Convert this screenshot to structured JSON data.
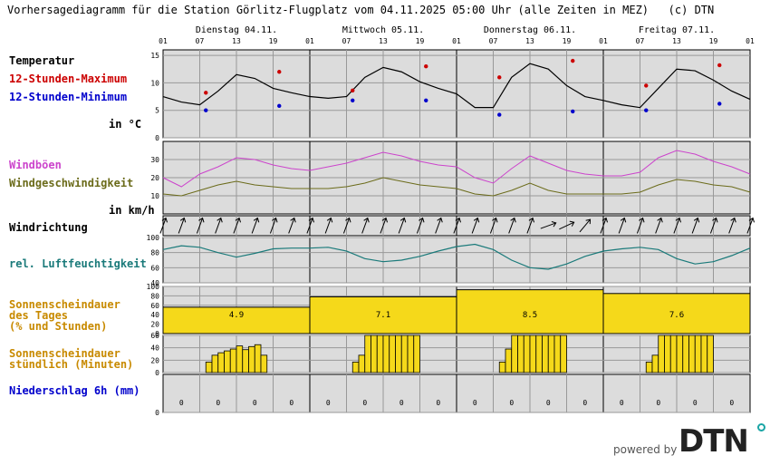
{
  "header": {
    "title": "Vorhersagediagramm für die Station Görlitz-Flugplatz vom 04.11.2025 05:00 Uhr (alle Zeiten in MEZ)   (c) DTN"
  },
  "days": [
    "Dienstag 04.11.",
    "Mittwoch 05.11.",
    "Donnerstag 06.11.",
    "Freitag 07.11."
  ],
  "hour_ticks": [
    "01",
    "07",
    "13",
    "19",
    "01",
    "07",
    "13",
    "19",
    "01",
    "07",
    "13",
    "19",
    "01",
    "07",
    "13",
    "19",
    "01"
  ],
  "labels": {
    "temperatur": "Temperatur",
    "tmax": "12-Stunden-Maximum",
    "tmin": "12-Stunden-Minimum",
    "temp_unit": "in °C",
    "windboeen": "Windböen",
    "windgeschw": "Windgeschwindigkeit",
    "wind_unit": "in km/h",
    "windrichtung": "Windrichtung",
    "feuchte": "rel. Luftfeuchtigkeit",
    "sonne_tag": "Sonnenscheindauer\ndes Tages\n(% und Stunden)",
    "sonne_std": "Sonnenscheindauer\nstündlich (Minuten)",
    "niederschlag": "Niederschlag 6h (mm)"
  },
  "colors": {
    "panel_bg": "#dcdcdc",
    "grid": "#999999",
    "temperature": "#000000",
    "max": "#cc0000",
    "min": "#0000cc",
    "gust": "#cc44cc",
    "wind": "#6b6b1a",
    "humidity": "#1a7a7a",
    "sun_fill": "#f5d91a",
    "sun_label": "#c88a00",
    "wind_label": "#6b6b1a",
    "gust_label": "#cc44cc",
    "precip_label": "#0000cc"
  },
  "brand": {
    "powered_by": "powered by",
    "logo": "DTN"
  },
  "chart_data": {
    "temperature": {
      "type": "line",
      "ylim": [
        0,
        16
      ],
      "yticks": [
        0,
        5,
        10,
        15
      ],
      "x_hours": [
        0,
        3,
        6,
        9,
        12,
        15,
        18,
        21,
        24,
        27,
        30,
        33,
        36,
        39,
        42,
        45,
        48,
        51,
        54,
        57,
        60,
        63,
        66,
        69,
        72,
        75,
        78,
        81,
        84,
        87,
        90,
        93,
        96
      ],
      "values": [
        7.5,
        6.5,
        6.0,
        8.5,
        11.5,
        10.8,
        9.0,
        8.2,
        7.5,
        7.2,
        7.5,
        11.0,
        12.8,
        12.0,
        10.2,
        9.0,
        8.0,
        5.5,
        5.5,
        11.0,
        13.5,
        12.5,
        9.5,
        7.5,
        6.8,
        6.0,
        5.5,
        9.0,
        12.5,
        12.2,
        10.5,
        8.5,
        7.0
      ],
      "max_points": [
        {
          "hour": 7,
          "value": 8.2
        },
        {
          "hour": 19,
          "value": 12.0
        },
        {
          "hour": 31,
          "value": 8.6
        },
        {
          "hour": 43,
          "value": 13.0
        },
        {
          "hour": 55,
          "value": 11.0
        },
        {
          "hour": 67,
          "value": 14.0
        },
        {
          "hour": 79,
          "value": 9.5
        },
        {
          "hour": 91,
          "value": 13.2
        }
      ],
      "min_points": [
        {
          "hour": 7,
          "value": 5.0
        },
        {
          "hour": 19,
          "value": 5.8
        },
        {
          "hour": 31,
          "value": 6.8
        },
        {
          "hour": 43,
          "value": 6.8
        },
        {
          "hour": 55,
          "value": 4.2
        },
        {
          "hour": 67,
          "value": 4.8
        },
        {
          "hour": 79,
          "value": 5.0
        },
        {
          "hour": 91,
          "value": 6.2
        }
      ]
    },
    "wind": {
      "type": "line",
      "ylim": [
        0,
        40
      ],
      "yticks": [
        10,
        20,
        30
      ],
      "x_hours": [
        0,
        3,
        6,
        9,
        12,
        15,
        18,
        21,
        24,
        27,
        30,
        33,
        36,
        39,
        42,
        45,
        48,
        51,
        54,
        57,
        60,
        63,
        66,
        69,
        72,
        75,
        78,
        81,
        84,
        87,
        90,
        93,
        96
      ],
      "gusts": [
        20,
        15,
        22,
        26,
        31,
        30,
        27,
        25,
        24,
        26,
        28,
        31,
        34,
        32,
        29,
        27,
        26,
        20,
        17,
        25,
        32,
        28,
        24,
        22,
        21,
        21,
        23,
        31,
        35,
        33,
        29,
        26,
        22
      ],
      "speed": [
        11,
        10,
        13,
        16,
        18,
        16,
        15,
        14,
        14,
        14,
        15,
        17,
        20,
        18,
        16,
        15,
        14,
        11,
        10,
        13,
        17,
        13,
        11,
        11,
        11,
        11,
        12,
        16,
        19,
        18,
        16,
        15,
        12
      ]
    },
    "wind_direction": {
      "type": "arrows",
      "hours": [
        0,
        3,
        6,
        9,
        12,
        15,
        18,
        21,
        24,
        27,
        30,
        33,
        36,
        39,
        42,
        45,
        48,
        51,
        54,
        57,
        60,
        63,
        66,
        69,
        72,
        75,
        78,
        81,
        84,
        87,
        90,
        93,
        96
      ],
      "degrees": [
        20,
        20,
        20,
        20,
        20,
        20,
        20,
        20,
        20,
        20,
        20,
        20,
        20,
        20,
        20,
        20,
        20,
        20,
        20,
        20,
        20,
        70,
        65,
        40,
        20,
        20,
        20,
        20,
        20,
        20,
        20,
        20,
        20
      ]
    },
    "humidity": {
      "type": "line",
      "ylim": [
        40,
        100
      ],
      "yticks": [
        40,
        60,
        80,
        100
      ],
      "x_hours": [
        0,
        3,
        6,
        9,
        12,
        15,
        18,
        21,
        24,
        27,
        30,
        33,
        36,
        39,
        42,
        45,
        48,
        51,
        54,
        57,
        60,
        63,
        66,
        69,
        72,
        75,
        78,
        81,
        84,
        87,
        90,
        93,
        96
      ],
      "values": [
        84,
        89,
        87,
        80,
        74,
        79,
        85,
        86,
        86,
        87,
        82,
        72,
        68,
        70,
        75,
        82,
        88,
        91,
        84,
        70,
        60,
        58,
        65,
        75,
        82,
        85,
        87,
        84,
        72,
        65,
        68,
        76,
        86
      ]
    },
    "sunshine_daily": {
      "type": "bar",
      "categories": [
        "04.11.",
        "05.11.",
        "06.11.",
        "07.11."
      ],
      "percent": [
        56,
        78,
        93,
        85
      ],
      "hours": [
        "4.9",
        "7.1",
        "8.5",
        "7.6"
      ],
      "ylim": [
        0,
        100
      ],
      "yticks": [
        0,
        20,
        40,
        60,
        80,
        100
      ]
    },
    "sunshine_hourly": {
      "type": "bar",
      "ylim": [
        0,
        60
      ],
      "yticks": [
        0,
        20,
        40,
        60
      ],
      "minutes": [
        0,
        0,
        0,
        0,
        0,
        0,
        0,
        17,
        28,
        32,
        35,
        38,
        43,
        37,
        42,
        45,
        28,
        0,
        0,
        0,
        0,
        0,
        0,
        0,
        0,
        0,
        0,
        0,
        0,
        0,
        0,
        17,
        28,
        60,
        60,
        60,
        60,
        60,
        60,
        60,
        60,
        60,
        0,
        0,
        0,
        0,
        0,
        0,
        0,
        0,
        0,
        0,
        0,
        0,
        0,
        17,
        38,
        60,
        60,
        60,
        60,
        60,
        60,
        60,
        60,
        60,
        0,
        0,
        0,
        0,
        0,
        0,
        0,
        0,
        0,
        0,
        0,
        0,
        0,
        17,
        28,
        60,
        60,
        60,
        60,
        60,
        60,
        60,
        60,
        60,
        0,
        0,
        0,
        0,
        0,
        0
      ]
    },
    "precipitation": {
      "type": "bar",
      "ylim": [
        0,
        5
      ],
      "yticks": [
        0
      ],
      "hours": [
        3,
        9,
        15,
        21,
        27,
        33,
        39,
        45,
        51,
        57,
        63,
        69,
        75,
        81,
        87,
        93
      ],
      "values": [
        "0",
        "0",
        "0",
        "0",
        "0",
        "0",
        "0",
        "0",
        "0",
        "0",
        "0",
        "0",
        "0",
        "0",
        "0",
        "0"
      ]
    }
  }
}
